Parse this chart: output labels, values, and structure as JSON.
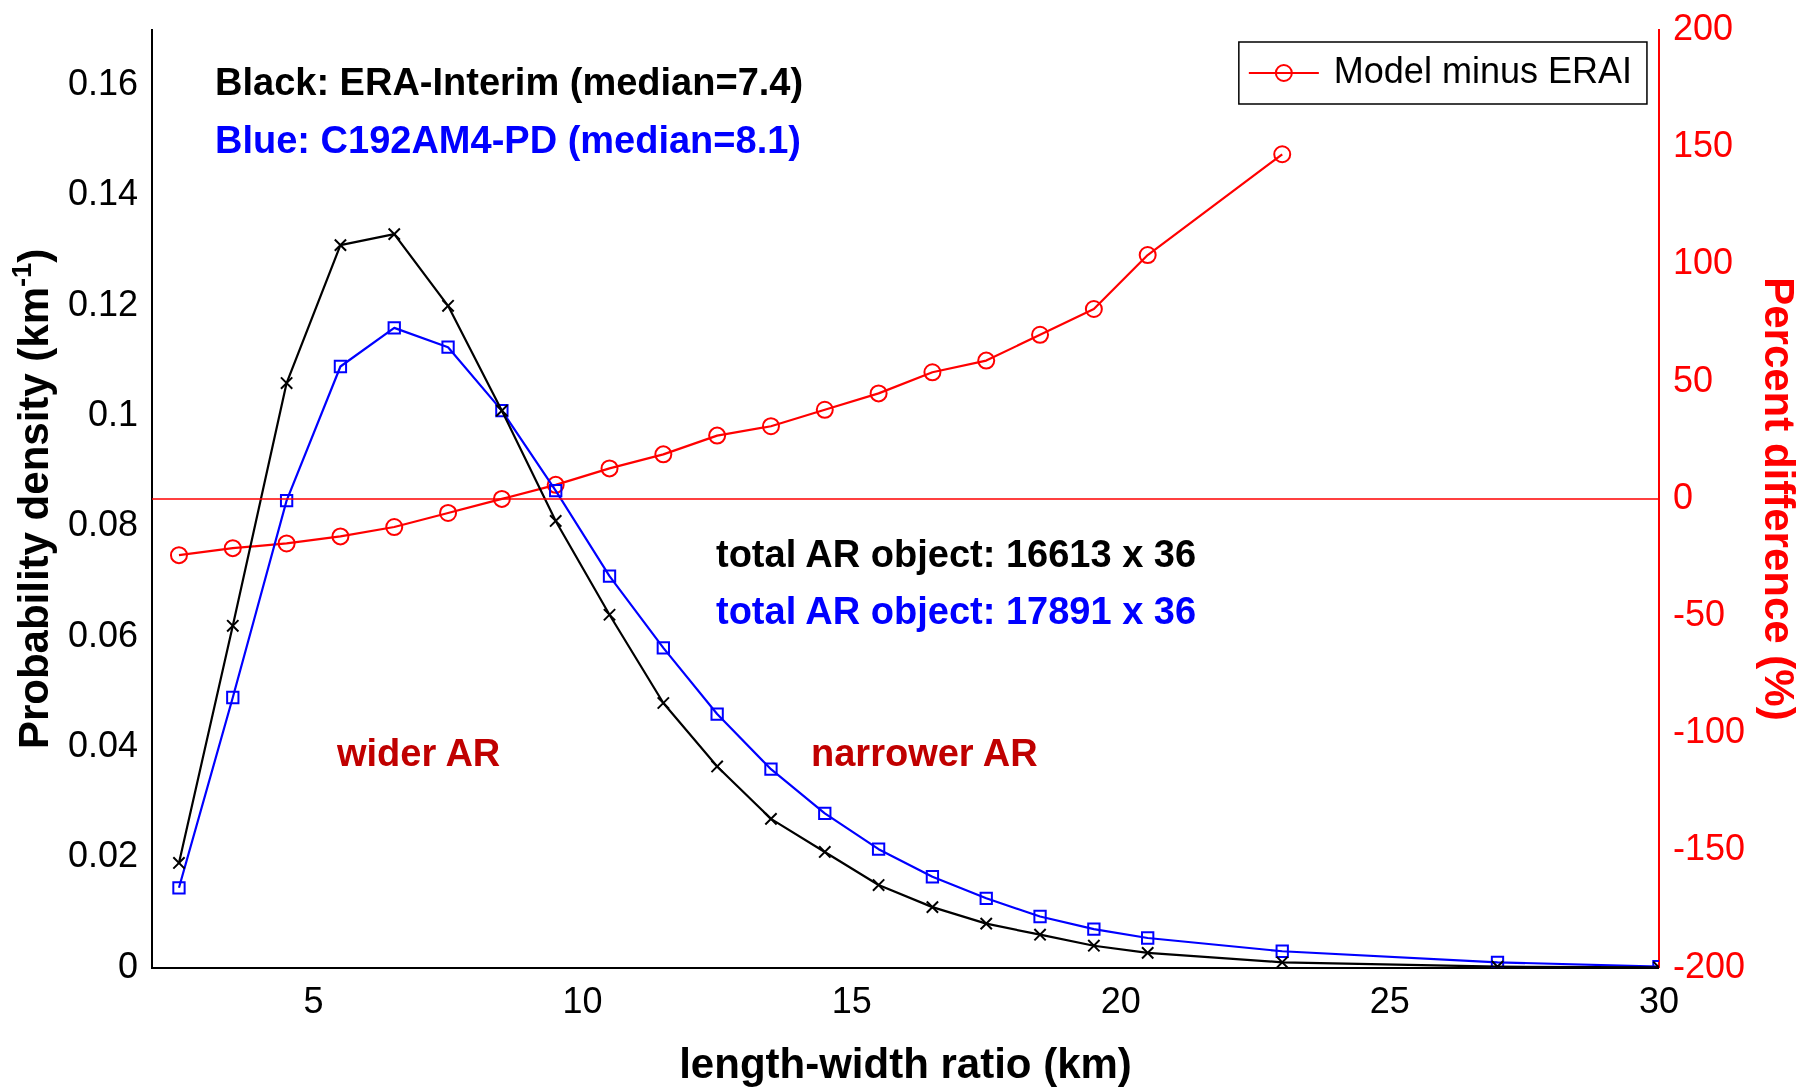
{
  "chart_data": {
    "type": "line",
    "xlabel": "length-width ratio (km)",
    "ylabel": "Probability density (km$^{-1}$)",
    "y2label": "Percent difference (%)",
    "x": [
      2.5,
      3.5,
      4.5,
      5.5,
      6.5,
      7.5,
      8.5,
      9.5,
      10.5,
      11.5,
      12.5,
      13.5,
      14.5,
      15.5,
      16.5,
      17.5,
      18.5,
      19.5,
      20.5,
      23,
      27,
      30
    ],
    "series": [
      {
        "color": "#000000",
        "marker": "cross",
        "values": [
          0.019,
          0.062,
          0.106,
          0.131,
          0.133,
          0.12,
          0.101,
          0.081,
          0.064,
          0.048,
          0.0365,
          0.027,
          0.021,
          0.015,
          0.011,
          0.008,
          0.006,
          0.004,
          0.0027,
          0.001,
          0.0002,
          0.0001
        ]
      },
      {
        "color": "#0000ff",
        "marker": "square",
        "values": [
          0.0145,
          0.049,
          0.0847,
          0.109,
          0.116,
          0.1125,
          0.101,
          0.0865,
          0.071,
          0.058,
          0.046,
          0.036,
          0.028,
          0.0215,
          0.0165,
          0.0126,
          0.0093,
          0.007,
          0.0054,
          0.003,
          0.001,
          0.0002
        ]
      },
      {
        "name": "Model minus ERAI",
        "color": "#ff0000",
        "marker": "circle",
        "axis": "y2",
        "values": [
          -24,
          -21,
          -19,
          -16,
          -12,
          -6,
          0,
          6,
          13,
          19,
          27,
          31,
          38,
          45,
          54,
          59,
          70,
          81,
          104,
          147,
          null,
          null
        ]
      }
    ],
    "xlim": [
      2,
      30
    ],
    "xticks": [
      5,
      10,
      15,
      20,
      25,
      30
    ],
    "ylim": [
      0,
      0.17
    ],
    "yticks": [
      0,
      0.02,
      0.04,
      0.06,
      0.08,
      0.1,
      0.12,
      0.14,
      0.16
    ],
    "y2lim": [
      -200,
      200
    ],
    "y2ticks": [
      -200,
      -150,
      -100,
      -50,
      0,
      50,
      100,
      150,
      200
    ],
    "ref_lines": [
      {
        "axis": "y2",
        "value": 0,
        "color": "#ff0000"
      }
    ],
    "annotations": [
      "Black: ERA-Interim (median=7.4)",
      "Blue: C192AM4-PD (median=8.1)",
      "total AR object: 16613 x 36",
      "total AR object: 17891 x 36",
      "wider AR",
      "narrower AR"
    ],
    "legend": "top right",
    "grid": false
  }
}
